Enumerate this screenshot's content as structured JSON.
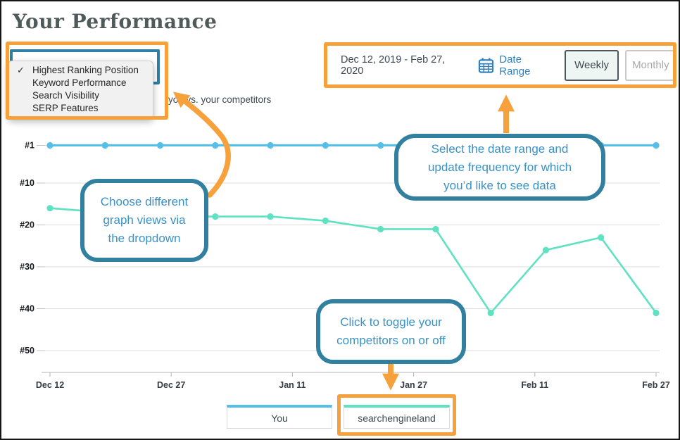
{
  "title": "Your Performance",
  "subtitle_fragment": "you vs. your competitors",
  "dropdown": {
    "check_glyph": "✓",
    "items": [
      {
        "label": "Highest Ranking Position",
        "checked": true
      },
      {
        "label": "Keyword Performance",
        "checked": false
      },
      {
        "label": "Search Visibility",
        "checked": false
      },
      {
        "label": "SERP Features",
        "checked": false
      }
    ]
  },
  "toolbar": {
    "date_range_text": "Dec 12, 2019 - Feb 27, 2020",
    "date_range_label": "Date Range",
    "weekly_label": "Weekly",
    "monthly_label": "Monthly",
    "selected_frequency": "Weekly"
  },
  "callouts": {
    "dropdown_tip_lines": [
      "Choose different",
      "graph views via",
      "the dropdown"
    ],
    "date_tip_lines": [
      "Select the date range and",
      "update frequency for which",
      "you’d like to see data"
    ],
    "legend_tip_lines": [
      "Click to toggle your",
      "competitors on or off"
    ]
  },
  "legend": [
    {
      "label": "You",
      "color": "#56BFE9"
    },
    {
      "label": "searchengineland",
      "color": "#5FE2C1"
    }
  ],
  "colors": {
    "orange": "#F6A13C",
    "callout_border": "#32809F",
    "callout_text": "#3A91C5",
    "series_you": "#56BFE9",
    "series_competitor": "#5FE2C1",
    "link_blue": "#2E7FBE"
  },
  "chart_data": {
    "type": "line",
    "x": [
      "Dec 12",
      "Dec 19",
      "Dec 26",
      "Jan 2",
      "Jan 9",
      "Jan 16",
      "Jan 23",
      "Jan 30",
      "Feb 6",
      "Feb 13",
      "Feb 20",
      "Feb 27"
    ],
    "x_tick_labels": [
      "Dec 12",
      "Dec 27",
      "Jan 11",
      "Jan 27",
      "Feb 11",
      "Feb 27"
    ],
    "y_ticks": [
      1,
      10,
      20,
      30,
      40,
      50
    ],
    "y_tick_labels": [
      "#1",
      "#10",
      "#20",
      "#30",
      "#40",
      "#50"
    ],
    "y_axis": "ranking position (inverted, #1 at top)",
    "ylim": [
      1,
      50
    ],
    "grid": true,
    "legend_position": "bottom",
    "series": [
      {
        "name": "You",
        "color": "#56BFE9",
        "values": [
          1,
          1,
          1,
          1,
          1,
          1,
          1,
          1,
          1,
          1,
          1,
          1
        ]
      },
      {
        "name": "searchengineland",
        "color": "#5FE2C1",
        "values": [
          16,
          17,
          18,
          18,
          18,
          19,
          21,
          21,
          41,
          26,
          23,
          41
        ]
      }
    ]
  }
}
